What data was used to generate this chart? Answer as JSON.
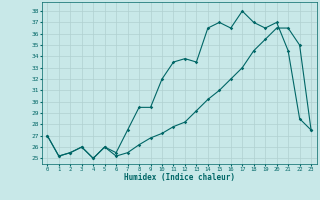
{
  "title": "",
  "xlabel": "Humidex (Indice chaleur)",
  "ylabel": "",
  "bg_color": "#c8e8e8",
  "line_color": "#006666",
  "grid_color": "#b0d0d0",
  "ylim": [
    24.5,
    38.8
  ],
  "xlim": [
    -0.5,
    23.5
  ],
  "yticks": [
    25,
    26,
    27,
    28,
    29,
    30,
    31,
    32,
    33,
    34,
    35,
    36,
    37,
    38
  ],
  "xticks": [
    0,
    1,
    2,
    3,
    4,
    5,
    6,
    7,
    8,
    9,
    10,
    11,
    12,
    13,
    14,
    15,
    16,
    17,
    18,
    19,
    20,
    21,
    22,
    23
  ],
  "curve1_x": [
    0,
    1,
    2,
    3,
    4,
    5,
    6,
    7,
    8,
    9,
    10,
    11,
    12,
    13,
    14,
    15,
    16,
    17,
    18,
    19,
    20,
    21,
    22,
    23
  ],
  "curve1_y": [
    27,
    25.2,
    25.5,
    26,
    25,
    26,
    25.2,
    25.5,
    26.2,
    26.8,
    27.2,
    27.8,
    28.2,
    29.2,
    30.2,
    31,
    32,
    33,
    34.5,
    35.5,
    36.5,
    36.5,
    35,
    27.5
  ],
  "curve2_x": [
    0,
    1,
    2,
    3,
    4,
    5,
    6,
    7,
    8,
    9,
    10,
    11,
    12,
    13,
    14,
    15,
    16,
    17,
    18,
    19,
    20,
    21,
    22,
    23
  ],
  "curve2_y": [
    27,
    25.2,
    25.5,
    26,
    25,
    26,
    25.5,
    27.5,
    29.5,
    29.5,
    32,
    33.5,
    33.8,
    33.5,
    36.5,
    37,
    36.5,
    38,
    37,
    36.5,
    37,
    34.5,
    28.5,
    27.5
  ]
}
